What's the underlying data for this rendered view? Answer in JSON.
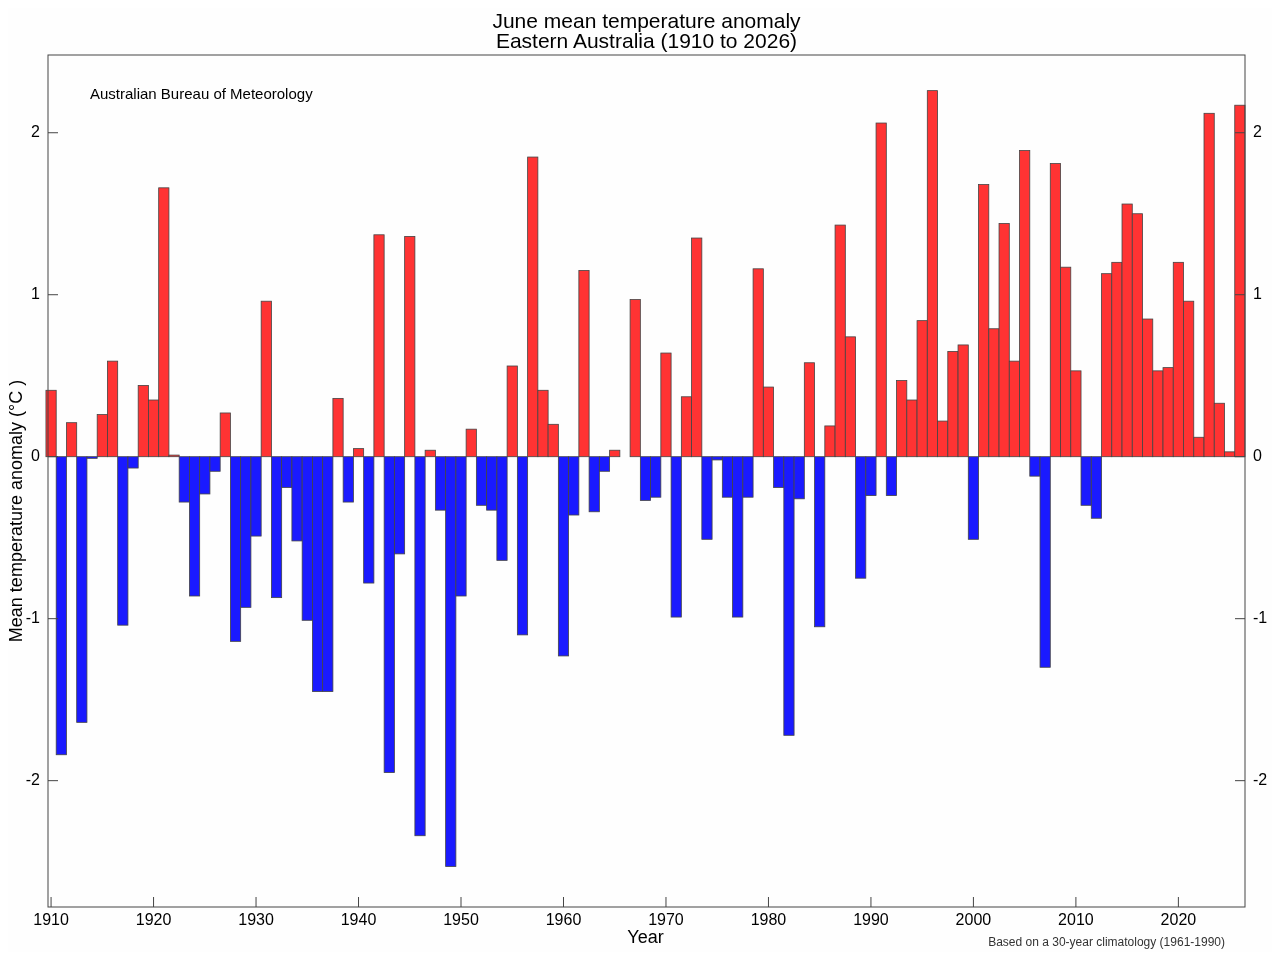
{
  "chart_data": {
    "type": "bar",
    "title": "June mean temperature anomaly",
    "subtitle": "Eastern Australia (1910 to 2026)",
    "xlabel": "Year",
    "ylabel": "Mean temperature anomaly (°C )",
    "x": [
      1910,
      1911,
      1912,
      1913,
      1914,
      1915,
      1916,
      1917,
      1918,
      1919,
      1920,
      1921,
      1922,
      1923,
      1924,
      1925,
      1926,
      1927,
      1928,
      1929,
      1930,
      1931,
      1932,
      1933,
      1934,
      1935,
      1936,
      1937,
      1938,
      1939,
      1940,
      1941,
      1942,
      1943,
      1944,
      1945,
      1946,
      1947,
      1948,
      1949,
      1950,
      1951,
      1952,
      1953,
      1954,
      1955,
      1956,
      1957,
      1958,
      1959,
      1960,
      1961,
      1962,
      1963,
      1964,
      1965,
      1966,
      1967,
      1968,
      1969,
      1970,
      1971,
      1972,
      1973,
      1974,
      1975,
      1976,
      1977,
      1978,
      1979,
      1980,
      1981,
      1982,
      1983,
      1984,
      1985,
      1986,
      1987,
      1988,
      1989,
      1990,
      1991,
      1992,
      1993,
      1994,
      1995,
      1996,
      1997,
      1998,
      1999,
      2000,
      2001,
      2002,
      2003,
      2004,
      2005,
      2006,
      2007,
      2008,
      2009,
      2010,
      2011,
      2012,
      2013,
      2014,
      2015,
      2016,
      2017,
      2018,
      2019,
      2020,
      2021,
      2022,
      2023,
      2024,
      2025,
      2026
    ],
    "values": [
      0.41,
      -1.84,
      0.21,
      -1.64,
      -0.01,
      0.26,
      0.59,
      -1.04,
      -0.07,
      0.44,
      0.35,
      1.66,
      0.01,
      -0.28,
      -0.86,
      -0.23,
      -0.09,
      0.27,
      -1.14,
      -0.93,
      -0.49,
      0.96,
      -0.87,
      -0.19,
      -0.52,
      -1.01,
      -1.45,
      -1.45,
      0.36,
      -0.28,
      0.05,
      -0.78,
      1.37,
      -1.95,
      -0.6,
      1.36,
      -2.34,
      0.04,
      -0.33,
      -2.53,
      -0.86,
      0.17,
      -0.3,
      -0.33,
      -0.64,
      0.56,
      -1.1,
      1.85,
      0.41,
      0.2,
      -1.23,
      -0.36,
      1.15,
      -0.34,
      -0.09,
      0.04,
      0,
      0.97,
      -0.27,
      -0.25,
      0.64,
      -0.99,
      0.37,
      1.35,
      -0.51,
      -0.02,
      -0.25,
      -0.99,
      -0.25,
      1.16,
      0.43,
      -0.19,
      -1.72,
      -0.26,
      0.58,
      -1.05,
      0.19,
      1.43,
      0.74,
      -0.75,
      -0.24,
      2.06,
      -0.24,
      0.47,
      0.35,
      0.84,
      2.26,
      0.22,
      0.65,
      0.69,
      -0.51,
      1.68,
      0.79,
      1.44,
      0.59,
      1.89,
      -0.12,
      -1.3,
      1.81,
      1.17,
      0.53,
      -0.3,
      -0.38,
      1.13,
      1.2,
      1.56,
      1.5,
      0.85,
      0.53,
      0.55,
      1.2,
      0.96,
      0.12,
      2.12,
      0.33,
      0.03,
      2.17
    ],
    "colors": [
      "#ff3333",
      "#1a1aff",
      "#ff3333",
      "#1a1aff",
      "#1a1aff",
      "#ff3333",
      "#ff3333",
      "#1a1aff",
      "#1a1aff",
      "#ff3333",
      "#ff3333",
      "#ff3333",
      "#ff3333",
      "#1a1aff",
      "#1a1aff",
      "#1a1aff",
      "#1a1aff",
      "#ff3333",
      "#1a1aff",
      "#1a1aff",
      "#1a1aff",
      "#ff3333",
      "#1a1aff",
      "#1a1aff",
      "#1a1aff",
      "#1a1aff",
      "#1a1aff",
      "#1a1aff",
      "#ff3333",
      "#1a1aff",
      "#ff3333",
      "#1a1aff",
      "#ff3333",
      "#1a1aff",
      "#1a1aff",
      "#ff3333",
      "#1a1aff",
      "#ff3333",
      "#1a1aff",
      "#1a1aff",
      "#1a1aff",
      "#ff3333",
      "#1a1aff",
      "#1a1aff",
      "#1a1aff",
      "#ff3333",
      "#1a1aff",
      "#ff3333",
      "#ff3333",
      "#ff3333",
      "#1a1aff",
      "#1a1aff",
      "#ff3333",
      "#1a1aff",
      "#1a1aff",
      "#ff3333",
      "#ff3333",
      "#ff3333",
      "#1a1aff",
      "#1a1aff",
      "#ff3333",
      "#1a1aff",
      "#ff3333",
      "#ff3333",
      "#1a1aff",
      "#1a1aff",
      "#1a1aff",
      "#1a1aff",
      "#1a1aff",
      "#ff3333",
      "#ff3333",
      "#1a1aff",
      "#1a1aff",
      "#1a1aff",
      "#ff3333",
      "#1a1aff",
      "#ff3333",
      "#ff3333",
      "#ff3333",
      "#1a1aff",
      "#1a1aff",
      "#ff3333",
      "#1a1aff",
      "#ff3333",
      "#ff3333",
      "#ff3333",
      "#ff3333",
      "#ff3333",
      "#ff3333",
      "#ff3333",
      "#1a1aff",
      "#ff3333",
      "#ff3333",
      "#ff3333",
      "#ff3333",
      "#ff3333",
      "#1a1aff",
      "#1a1aff",
      "#ff3333",
      "#ff3333",
      "#ff3333",
      "#1a1aff",
      "#1a1aff",
      "#ff3333",
      "#ff3333",
      "#ff3333",
      "#ff3333",
      "#ff3333",
      "#ff3333",
      "#ff3333",
      "#ff3333",
      "#ff3333",
      "#ff3333",
      "#ff3333",
      "#ff3333",
      "#ff3333",
      "#ff3333"
    ],
    "xlim": [
      1909.7,
      2026.5
    ],
    "xticks": [
      1910,
      1920,
      1930,
      1940,
      1950,
      1960,
      1970,
      1980,
      1990,
      2000,
      2010,
      2020
    ],
    "ylim": [
      -2.78,
      2.48
    ],
    "yticks": [
      -2,
      -1,
      0,
      1,
      2
    ],
    "y2lim": [
      -2.78,
      2.48
    ],
    "y2ticks": [
      -2,
      -1,
      0,
      1,
      2
    ],
    "grid": false,
    "annotations": [
      "Australian Bureau of Meteorology",
      "Based on a 30-year climatology (1961-1990)"
    ]
  }
}
